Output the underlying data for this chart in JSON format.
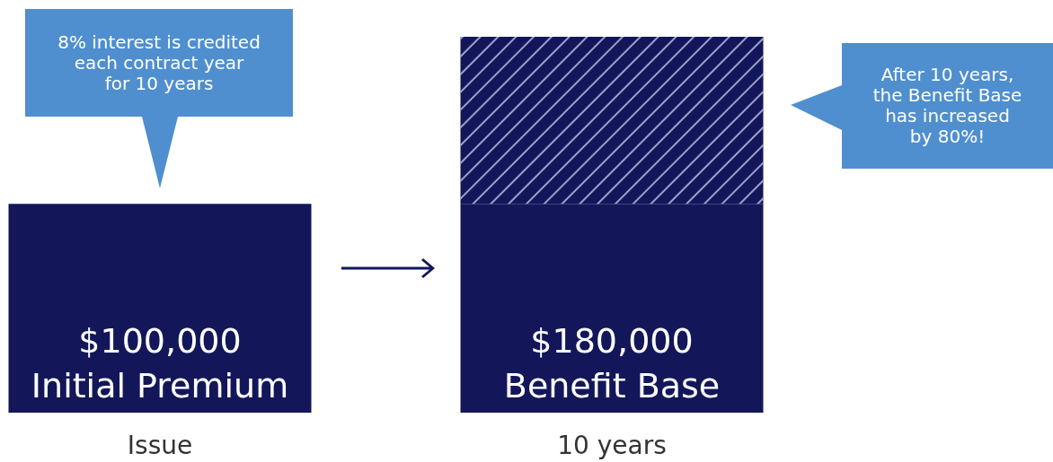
{
  "chart_data": {
    "type": "bar",
    "stacked": true,
    "categories": [
      "Issue",
      "10 years"
    ],
    "series": [
      {
        "color": "#13175a",
        "values": [
          100000,
          100000
        ],
        "value_labels": [
          "$100,000\nInitial Premium",
          null
        ]
      },
      {
        "color": "#13175a",
        "values": [
          null,
          80000
        ]
      }
    ],
    "totals": [
      null,
      "$180,000\nBenefit Base"
    ],
    "annotations": [
      "8% interest is credited\neach contract year\nfor 10 years",
      "After 10 years,\nthe Benefit Base\nhas increased\nby 80%!"
    ],
    "grid": false
  }
}
